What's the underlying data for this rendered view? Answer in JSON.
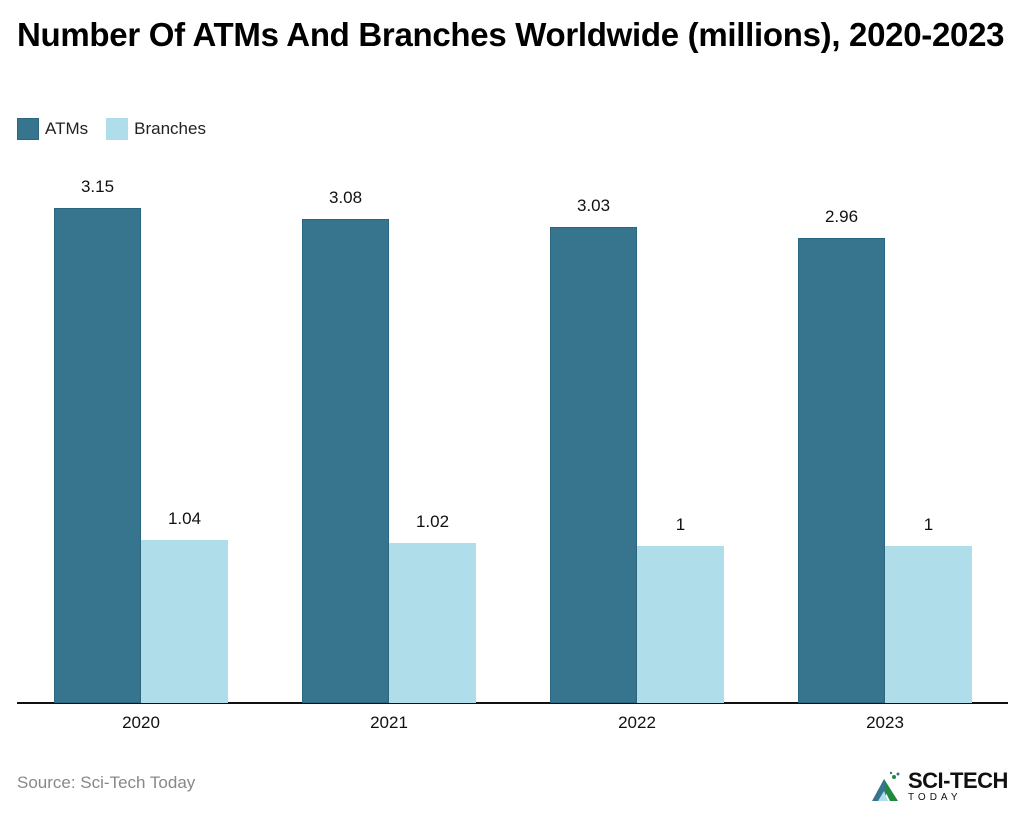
{
  "header": {
    "title": "Number Of ATMs And Branches Worldwide (millions), 2020-2023"
  },
  "legend": [
    {
      "label": "ATMs",
      "color": "#37758F"
    },
    {
      "label": "Branches",
      "color": "#AFDDEA"
    }
  ],
  "footer": {
    "source": "Source: Sci-Tech Today",
    "logo_main": "SCI-TECH",
    "logo_sub": "TODAY"
  },
  "chart_data": {
    "type": "bar",
    "title": "Number Of ATMs And Branches Worldwide (millions), 2020-2023",
    "categories": [
      "2020",
      "2021",
      "2022",
      "2023"
    ],
    "series": [
      {
        "name": "ATMs",
        "color": "#37758F",
        "values": [
          3.15,
          3.08,
          3.03,
          2.96
        ],
        "labels": [
          "3.15",
          "3.08",
          "3.03",
          "2.96"
        ]
      },
      {
        "name": "Branches",
        "color": "#AFDDEA",
        "values": [
          1.04,
          1.02,
          1,
          1
        ],
        "labels": [
          "1.04",
          "1.02",
          "1",
          "1"
        ]
      }
    ],
    "xlabel": "",
    "ylabel": "",
    "ylim": [
      0,
      3.5
    ],
    "grid": false,
    "legend_position": "top-left",
    "data_labels": true
  }
}
